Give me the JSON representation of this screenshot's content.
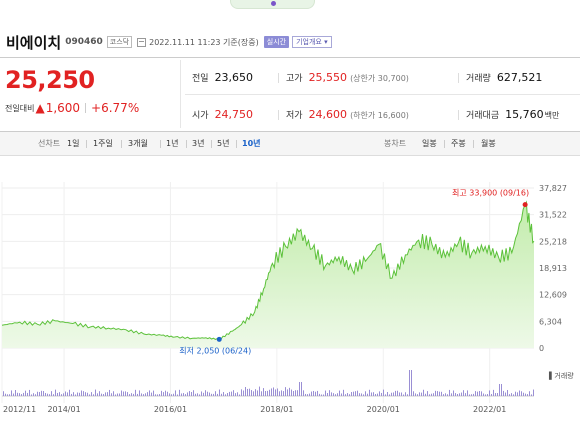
{
  "header": {
    "company": "비에이치",
    "code": "090460",
    "market": "코스닥",
    "timestamp": "2022.11.11 11:23 기준(장중)",
    "realtime_badge": "실시간",
    "overview_badge": "기업개요 ▾"
  },
  "price": {
    "current": "25,250",
    "change_label": "전일대비",
    "change_arrow": "▲",
    "change_value": "1,600",
    "change_pct": "+6.77%"
  },
  "quote": {
    "prev_close": {
      "label": "전일",
      "value": "23,650"
    },
    "high": {
      "label": "고가",
      "value": "25,550",
      "sub": "(상한가 30,700)"
    },
    "volume": {
      "label": "거래량",
      "value": "627,521"
    },
    "open": {
      "label": "시가",
      "value": "24,750"
    },
    "low": {
      "label": "저가",
      "value": "24,600",
      "sub": "(하한가 16,600)"
    },
    "amount": {
      "label": "거래대금",
      "value": "15,760",
      "unit": "백만"
    }
  },
  "line_tabs": {
    "label": "선차트",
    "items": [
      "1일",
      "1주일",
      "3개월",
      "1년",
      "3년",
      "5년",
      "10년"
    ],
    "active": "10년"
  },
  "candle_tabs": {
    "label": "봉차트",
    "items": [
      "일봉",
      "주봉",
      "월봉"
    ]
  },
  "chart_data": {
    "type": "area",
    "y_ticks": [
      "37,827",
      "31,522",
      "25,218",
      "18,913",
      "12,609",
      "6,304",
      "0"
    ],
    "ylim": [
      0,
      37827
    ],
    "x_ticks": [
      "2012/11",
      "2014/01",
      "2016/01",
      "2018/01",
      "2020/01",
      "2022/01"
    ],
    "max_label": "최고 33,900 (09/16)",
    "min_label": "최저 2,050 (06/24)",
    "volume_label": "▌거래량",
    "series": [
      {
        "x": [
          "2012/11",
          "2013/03",
          "2013/07",
          "2013/11",
          "2014/03",
          "2014/07",
          "2014/11",
          "2015/03",
          "2015/07",
          "2015/11",
          "2016/02",
          "2016/06",
          "2016/09",
          "2016/12",
          "2017/03",
          "2017/05",
          "2017/08",
          "2017/10",
          "2017/12",
          "2018/03",
          "2018/06",
          "2018/09",
          "2018/12",
          "2019/03",
          "2019/06",
          "2019/09",
          "2019/12",
          "2020/03",
          "2020/06",
          "2020/09",
          "2020/12",
          "2021/03",
          "2021/06",
          "2021/09",
          "2021/12",
          "2022/03",
          "2022/06",
          "2022/09",
          "2022/11"
        ],
        "values": [
          5400,
          6100,
          5600,
          6400,
          5800,
          5000,
          4700,
          4300,
          3300,
          3000,
          2600,
          2300,
          2400,
          2050,
          4000,
          5500,
          8500,
          14000,
          20000,
          24000,
          27500,
          23500,
          19500,
          21500,
          18500,
          20500,
          24500,
          16500,
          22000,
          25500,
          24500,
          21500,
          25000,
          22500,
          24000,
          21500,
          22500,
          33900,
          25250
        ]
      }
    ]
  },
  "colors": {
    "up": "#e12222",
    "down": "#1b62c9",
    "line": "#5cc13a",
    "fill_top": "#c2ecab",
    "fill_bottom": "#eef9e8",
    "volume": "#9a8fd4"
  }
}
